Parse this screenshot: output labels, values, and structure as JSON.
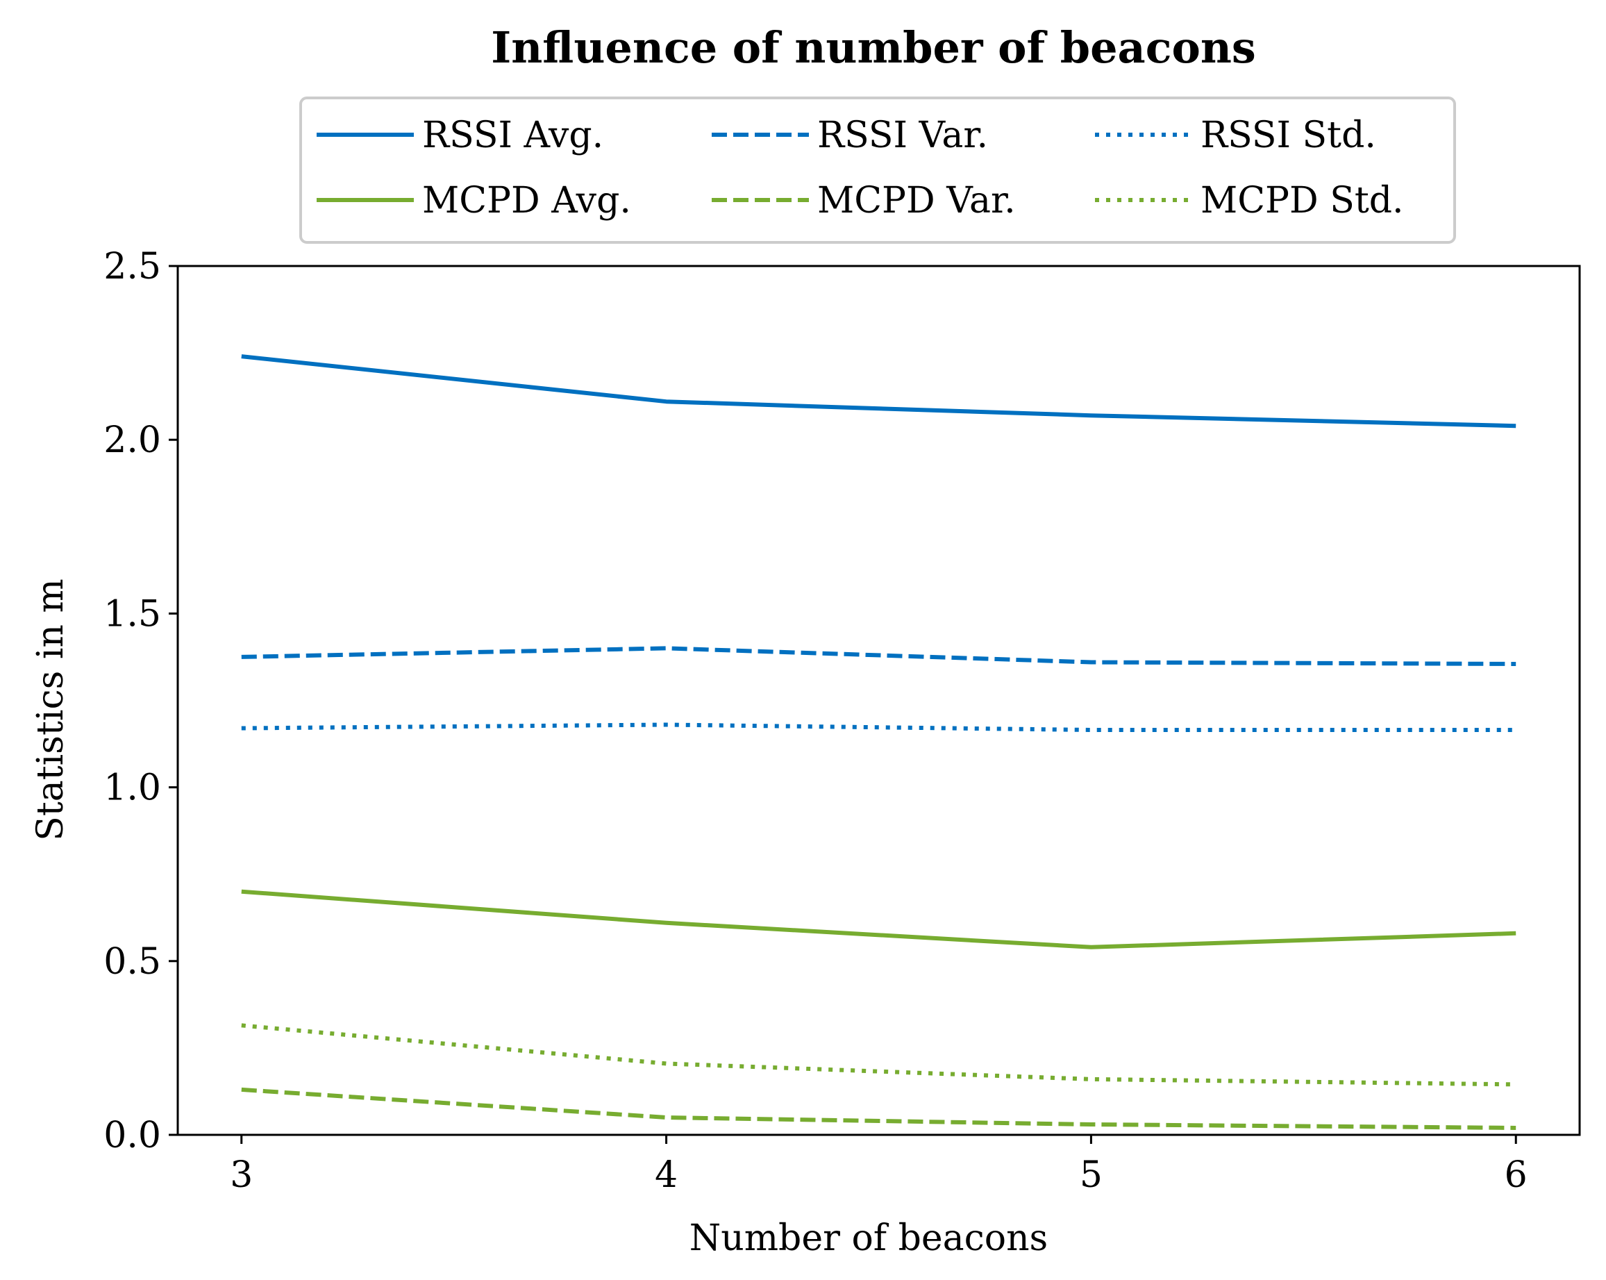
{
  "chart_data": {
    "type": "line",
    "title": "Influence of number of beacons",
    "xlabel": "Number of beacons",
    "ylabel": "Statistics in m",
    "x": [
      3,
      4,
      5,
      6
    ],
    "xlim": [
      2.85,
      6.15
    ],
    "ylim": [
      0.0,
      2.5
    ],
    "xticks": [
      3,
      4,
      5,
      6
    ],
    "xtick_labels": [
      "3",
      "4",
      "5",
      "6"
    ],
    "yticks": [
      0.0,
      0.5,
      1.0,
      1.5,
      2.0,
      2.5
    ],
    "ytick_labels": [
      "0.0",
      "0.5",
      "1.0",
      "1.5",
      "2.0",
      "2.5"
    ],
    "grid": false,
    "legend_position": "top-center, above plot",
    "series": [
      {
        "name": "RSSI Avg.",
        "values": [
          2.24,
          2.11,
          2.07,
          2.04
        ],
        "color": "#0070C0",
        "style": "solid"
      },
      {
        "name": "RSSI Var.",
        "values": [
          1.375,
          1.4,
          1.36,
          1.355
        ],
        "color": "#0070C0",
        "style": "dashed"
      },
      {
        "name": "RSSI Std.",
        "values": [
          1.17,
          1.18,
          1.165,
          1.165
        ],
        "color": "#0070C0",
        "style": "dotted"
      },
      {
        "name": "MCPD Avg.",
        "values": [
          0.7,
          0.61,
          0.54,
          0.58
        ],
        "color": "#77AC30",
        "style": "solid"
      },
      {
        "name": "MCPD Var.",
        "values": [
          0.13,
          0.05,
          0.03,
          0.02
        ],
        "color": "#77AC30",
        "style": "dashed"
      },
      {
        "name": "MCPD Std.",
        "values": [
          0.315,
          0.205,
          0.16,
          0.145
        ],
        "color": "#77AC30",
        "style": "dotted"
      }
    ]
  }
}
